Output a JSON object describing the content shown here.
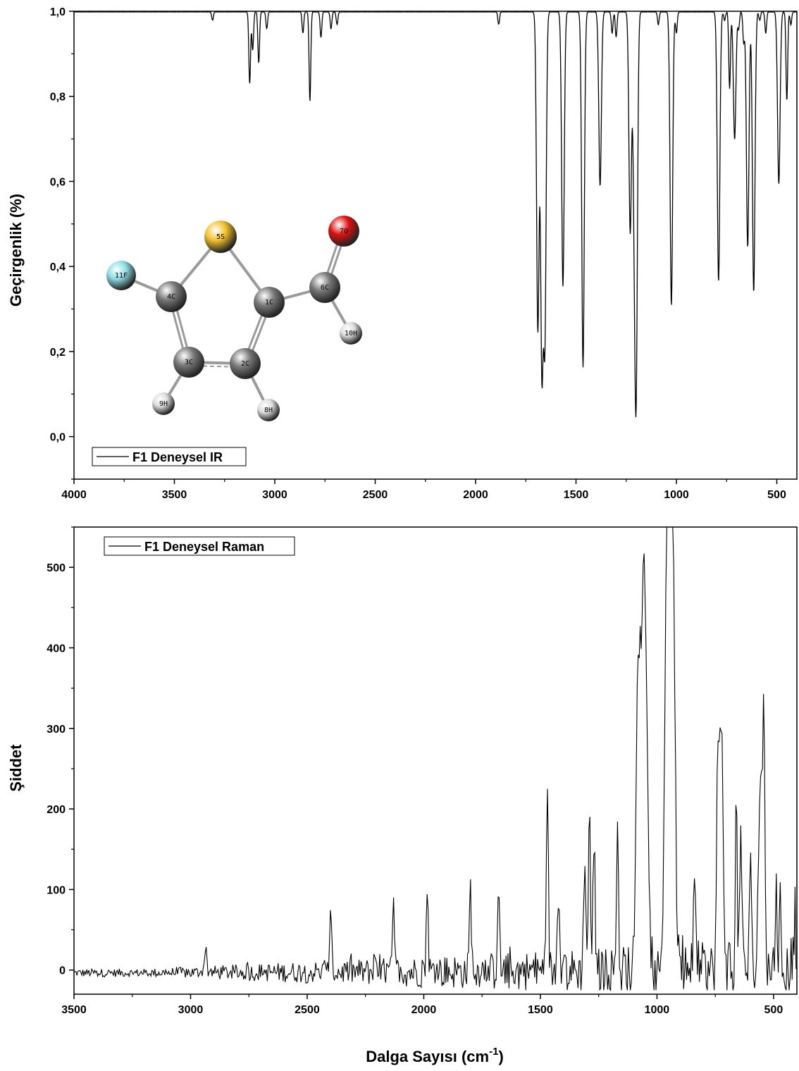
{
  "chart_data": [
    {
      "type": "line",
      "name": "ir-spectrum",
      "ylabel": "Geçirgenlik (%)",
      "xlim": [
        4000,
        400
      ],
      "ylim": [
        -0.1,
        1.0
      ],
      "x_ticks": [
        4000,
        3500,
        3000,
        2500,
        2000,
        1500,
        1000,
        500
      ],
      "x_tick_labels": [
        "4000",
        "3500",
        "3000",
        "2500",
        "2000",
        "1500",
        "1000",
        "500"
      ],
      "y_ticks": [
        0.0,
        0.2,
        0.4,
        0.6,
        0.8,
        1.0
      ],
      "y_tick_labels": [
        "0,0",
        "0,2",
        "0,4",
        "0,6",
        "0,8",
        "1,0"
      ],
      "grid": false,
      "legend": {
        "position": "bottom-left",
        "label": "F1 Deneysel IR"
      },
      "baseline": 1.0,
      "peaks": [
        {
          "x": 3310,
          "y": 0.98
        },
        {
          "x": 3125,
          "y": 0.83
        },
        {
          "x": 3110,
          "y": 0.91
        },
        {
          "x": 3080,
          "y": 0.88
        },
        {
          "x": 3040,
          "y": 0.96
        },
        {
          "x": 2860,
          "y": 0.95
        },
        {
          "x": 2825,
          "y": 0.79
        },
        {
          "x": 2770,
          "y": 0.94
        },
        {
          "x": 2720,
          "y": 0.96
        },
        {
          "x": 2690,
          "y": 0.97
        },
        {
          "x": 1885,
          "y": 0.97
        },
        {
          "x": 1690,
          "y": 0.25
        },
        {
          "x": 1670,
          "y": 0.175
        },
        {
          "x": 1655,
          "y": 0.24
        },
        {
          "x": 1565,
          "y": 0.355
        },
        {
          "x": 1465,
          "y": 0.165
        },
        {
          "x": 1380,
          "y": 0.59
        },
        {
          "x": 1320,
          "y": 0.95
        },
        {
          "x": 1300,
          "y": 0.94
        },
        {
          "x": 1230,
          "y": 0.48
        },
        {
          "x": 1200,
          "y": 0.19
        },
        {
          "x": 1210,
          "y": 0.6
        },
        {
          "x": 1090,
          "y": 0.97
        },
        {
          "x": 1025,
          "y": 0.31
        },
        {
          "x": 1000,
          "y": 0.95
        },
        {
          "x": 790,
          "y": 0.365
        },
        {
          "x": 760,
          "y": 0.98
        },
        {
          "x": 735,
          "y": 0.82
        },
        {
          "x": 710,
          "y": 0.7
        },
        {
          "x": 690,
          "y": 0.96
        },
        {
          "x": 665,
          "y": 0.93
        },
        {
          "x": 645,
          "y": 0.445
        },
        {
          "x": 615,
          "y": 0.34
        },
        {
          "x": 585,
          "y": 0.98
        },
        {
          "x": 555,
          "y": 0.95
        },
        {
          "x": 490,
          "y": 0.595
        },
        {
          "x": 450,
          "y": 0.79
        },
        {
          "x": 430,
          "y": 0.97
        }
      ]
    },
    {
      "type": "line",
      "name": "raman-spectrum",
      "ylabel": "Şiddet",
      "xlim": [
        3500,
        400
      ],
      "ylim": [
        -30,
        550
      ],
      "x_ticks": [
        3500,
        3000,
        2500,
        2000,
        1500,
        1000,
        500
      ],
      "x_tick_labels": [
        "3500",
        "3000",
        "2500",
        "2000",
        "1500",
        "1000",
        "500"
      ],
      "y_ticks": [
        0,
        100,
        200,
        300,
        400,
        500
      ],
      "y_tick_labels": [
        "0",
        "100",
        "200",
        "300",
        "400",
        "500"
      ],
      "grid": false,
      "legend": {
        "position": "top-left",
        "label": "F1 Deneysel Raman"
      },
      "peaks": [
        {
          "x": 2935,
          "y": 36
        },
        {
          "x": 2400,
          "y": 72
        },
        {
          "x": 2130,
          "y": 85
        },
        {
          "x": 1985,
          "y": 97
        },
        {
          "x": 1800,
          "y": 104
        },
        {
          "x": 1680,
          "y": 113
        },
        {
          "x": 1470,
          "y": 220
        },
        {
          "x": 1420,
          "y": 106
        },
        {
          "x": 1310,
          "y": 153
        },
        {
          "x": 1290,
          "y": 202
        },
        {
          "x": 1270,
          "y": 172
        },
        {
          "x": 1170,
          "y": 182
        },
        {
          "x": 1080,
          "y": 388
        },
        {
          "x": 1060,
          "y": 410
        },
        {
          "x": 1045,
          "y": 302
        },
        {
          "x": 960,
          "y": 410
        },
        {
          "x": 945,
          "y": 495
        },
        {
          "x": 930,
          "y": 450
        },
        {
          "x": 840,
          "y": 126
        },
        {
          "x": 740,
          "y": 215
        },
        {
          "x": 725,
          "y": 311
        },
        {
          "x": 660,
          "y": 204
        },
        {
          "x": 640,
          "y": 170
        },
        {
          "x": 600,
          "y": 130
        },
        {
          "x": 555,
          "y": 258
        },
        {
          "x": 540,
          "y": 248
        },
        {
          "x": 490,
          "y": 100
        },
        {
          "x": 470,
          "y": 75
        },
        {
          "x": 410,
          "y": 62
        }
      ]
    }
  ],
  "shared_xlabel": {
    "main": "Dalga Sayısı (cm",
    "superscript": "-1",
    "close": ")"
  },
  "molecule": {
    "atoms": [
      {
        "label": "5S",
        "color": "#f2c12e"
      },
      {
        "label": "7O",
        "color": "#dd1111"
      },
      {
        "label": "11F",
        "color": "#8fdde6"
      },
      {
        "label": "4C",
        "color": "#777777"
      },
      {
        "label": "1C",
        "color": "#777777"
      },
      {
        "label": "6C",
        "color": "#777777"
      },
      {
        "label": "10H",
        "color": "#dddddd"
      },
      {
        "label": "3C",
        "color": "#777777"
      },
      {
        "label": "2C",
        "color": "#777777"
      },
      {
        "label": "9H",
        "color": "#dddddd"
      },
      {
        "label": "8H",
        "color": "#dddddd"
      }
    ]
  }
}
